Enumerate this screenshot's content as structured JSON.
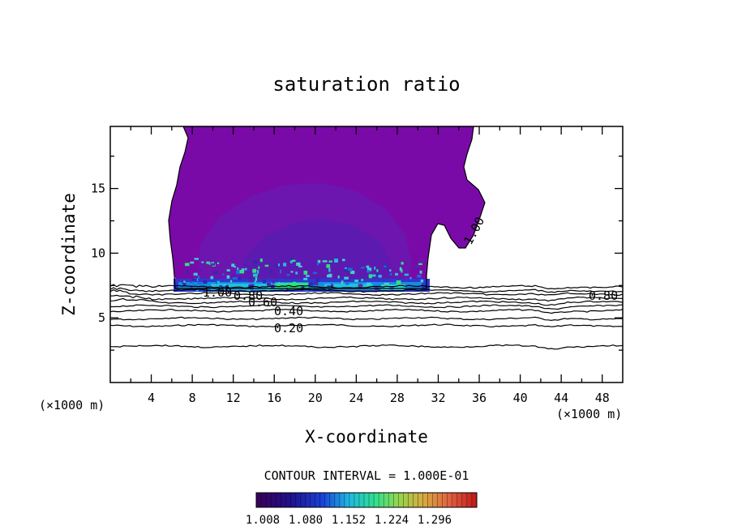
{
  "chart_data": {
    "type": "heatmap",
    "title": "saturation ratio",
    "xlabel": "X-coordinate",
    "ylabel": "Z-coordinate",
    "x_units": "(×1000 m)",
    "y_units": "(×1000 m)",
    "xlim": [
      0,
      50
    ],
    "ylim": [
      0,
      19.8
    ],
    "x_ticks": [
      4,
      8,
      12,
      16,
      20,
      24,
      28,
      32,
      36,
      40,
      44,
      48
    ],
    "y_ticks": [
      5,
      10,
      15
    ],
    "contour_interval_label": "CONTOUR INTERVAL = 1.000E-01",
    "contour_lines": [
      {
        "value": 0.2,
        "label": "0.20",
        "z": 4.4
      },
      {
        "value": 0.3,
        "label": "",
        "z": 4.95
      },
      {
        "value": 0.4,
        "label": "0.40",
        "z": 5.55
      },
      {
        "value": 0.5,
        "label": "",
        "z": 5.9
      },
      {
        "value": 0.6,
        "label": "0.60",
        "z": 6.2
      },
      {
        "value": 0.7,
        "label": "",
        "z": 6.5
      },
      {
        "value": 0.8,
        "label": "0.80",
        "z": 6.85
      },
      {
        "value": 0.9,
        "label": "",
        "z": 7.1
      },
      {
        "value": 1.0,
        "label": "1.00",
        "z": 7.4
      },
      {
        "value": 0.1,
        "label": "",
        "z": 2.8
      }
    ],
    "contour_annotations": [
      "1.00",
      "0.80",
      "0.60",
      "0.40",
      "0.20",
      "0.80",
      "1.00"
    ],
    "colorbar": {
      "tick_labels": [
        "1.008",
        "1.080",
        "1.152",
        "1.224",
        "1.296"
      ],
      "colors": [
        "#3a0058",
        "#2a0a8a",
        "#1a2ad0",
        "#1a7ae0",
        "#20c0e0",
        "#30e090",
        "#60e060",
        "#a0d050",
        "#d0a040",
        "#e06040",
        "#c02020"
      ]
    },
    "colors": {
      "fill_main": "#7a0aa8",
      "fill_inner": "#6a18b0",
      "fill_core": "#5020a8",
      "band_blue": "#2060e0",
      "band_cyan": "#20c0e0",
      "band_green": "#30e070"
    }
  }
}
